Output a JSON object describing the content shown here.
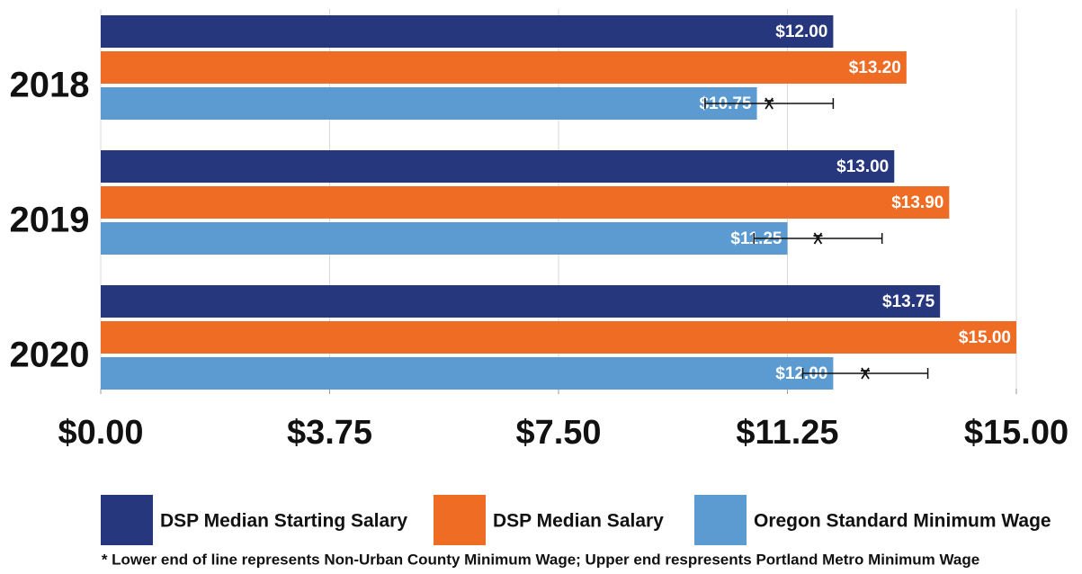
{
  "chart_data": {
    "type": "bar",
    "orientation": "horizontal",
    "categories": [
      "2018",
      "2019",
      "2020"
    ],
    "series": [
      {
        "name": "DSP Median Starting Salary",
        "color": "#27377e",
        "values": [
          12.0,
          13.0,
          13.75
        ],
        "value_labels": [
          "$12.00",
          "$13.00",
          "$13.75"
        ]
      },
      {
        "name": "DSP Median Salary",
        "color": "#ef6c24",
        "values": [
          13.2,
          13.9,
          15.0
        ],
        "value_labels": [
          "$13.20",
          "$13.90",
          "$15.00"
        ]
      },
      {
        "name": "Oregon Standard Minimum Wage",
        "color": "#5b9bd1",
        "values": [
          10.75,
          11.25,
          12.0
        ],
        "value_labels": [
          "$10.75",
          "$11.25",
          "$12.00"
        ],
        "error_low": [
          9.9,
          10.7,
          11.5
        ],
        "error_high": [
          12.0,
          12.8,
          13.55
        ]
      }
    ],
    "xlim": [
      0,
      15
    ],
    "xticks": [
      {
        "value": 0,
        "label": "$0.00"
      },
      {
        "value": 3.75,
        "label": "$3.75"
      },
      {
        "value": 7.5,
        "label": "$7.50"
      },
      {
        "value": 11.25,
        "label": "$11.25"
      },
      {
        "value": 15,
        "label": "$15.00"
      }
    ],
    "grid": true,
    "legend": "bottom",
    "footnote": "* Lower end of line represents Non-Urban County Minimum Wage; Upper end respresents Portland Metro Minimum Wage"
  }
}
